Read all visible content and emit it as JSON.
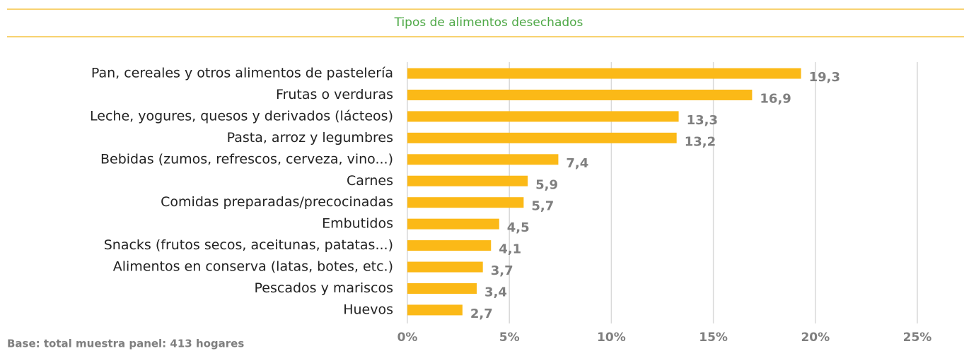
{
  "chart_data": {
    "type": "barh",
    "title": "Tipos de alimentos desechados",
    "categories": [
      "Pan, cereales y otros alimentos de pastelería",
      "Frutas o verduras",
      "Leche, yogures, quesos y derivados (lácteos)",
      "Pasta, arroz y legumbres",
      "Bebidas (zumos, refrescos, cerveza, vino...)",
      "Carnes",
      "Comidas preparadas/precocinadas",
      "Embutidos",
      "Snacks (frutos secos, aceitunas, patatas...)",
      "Alimentos en conserva (latas, botes, etc.)",
      "Pescados y mariscos",
      "Huevos"
    ],
    "values": [
      19.3,
      16.9,
      13.3,
      13.2,
      7.4,
      5.9,
      5.7,
      4.5,
      4.1,
      3.7,
      3.4,
      2.7
    ],
    "value_labels": [
      "19,3",
      "16,9",
      "13,3",
      "13,2",
      "7,4",
      "5,9",
      "5,7",
      "4,5",
      "4,1",
      "3,7",
      "3,4",
      "2,7"
    ],
    "color": "#fbb917",
    "xlim": [
      0,
      25
    ],
    "xticks": [
      {
        "value": 0,
        "label": "0%"
      },
      {
        "value": 5,
        "label": "5%"
      },
      {
        "value": 10,
        "label": "10%"
      },
      {
        "value": 15,
        "label": "15%"
      },
      {
        "value": 20,
        "label": "20%"
      },
      {
        "value": 25,
        "label": "25%"
      }
    ],
    "grid": true,
    "footnote": "Base: total muestra panel: 413 hogares"
  }
}
